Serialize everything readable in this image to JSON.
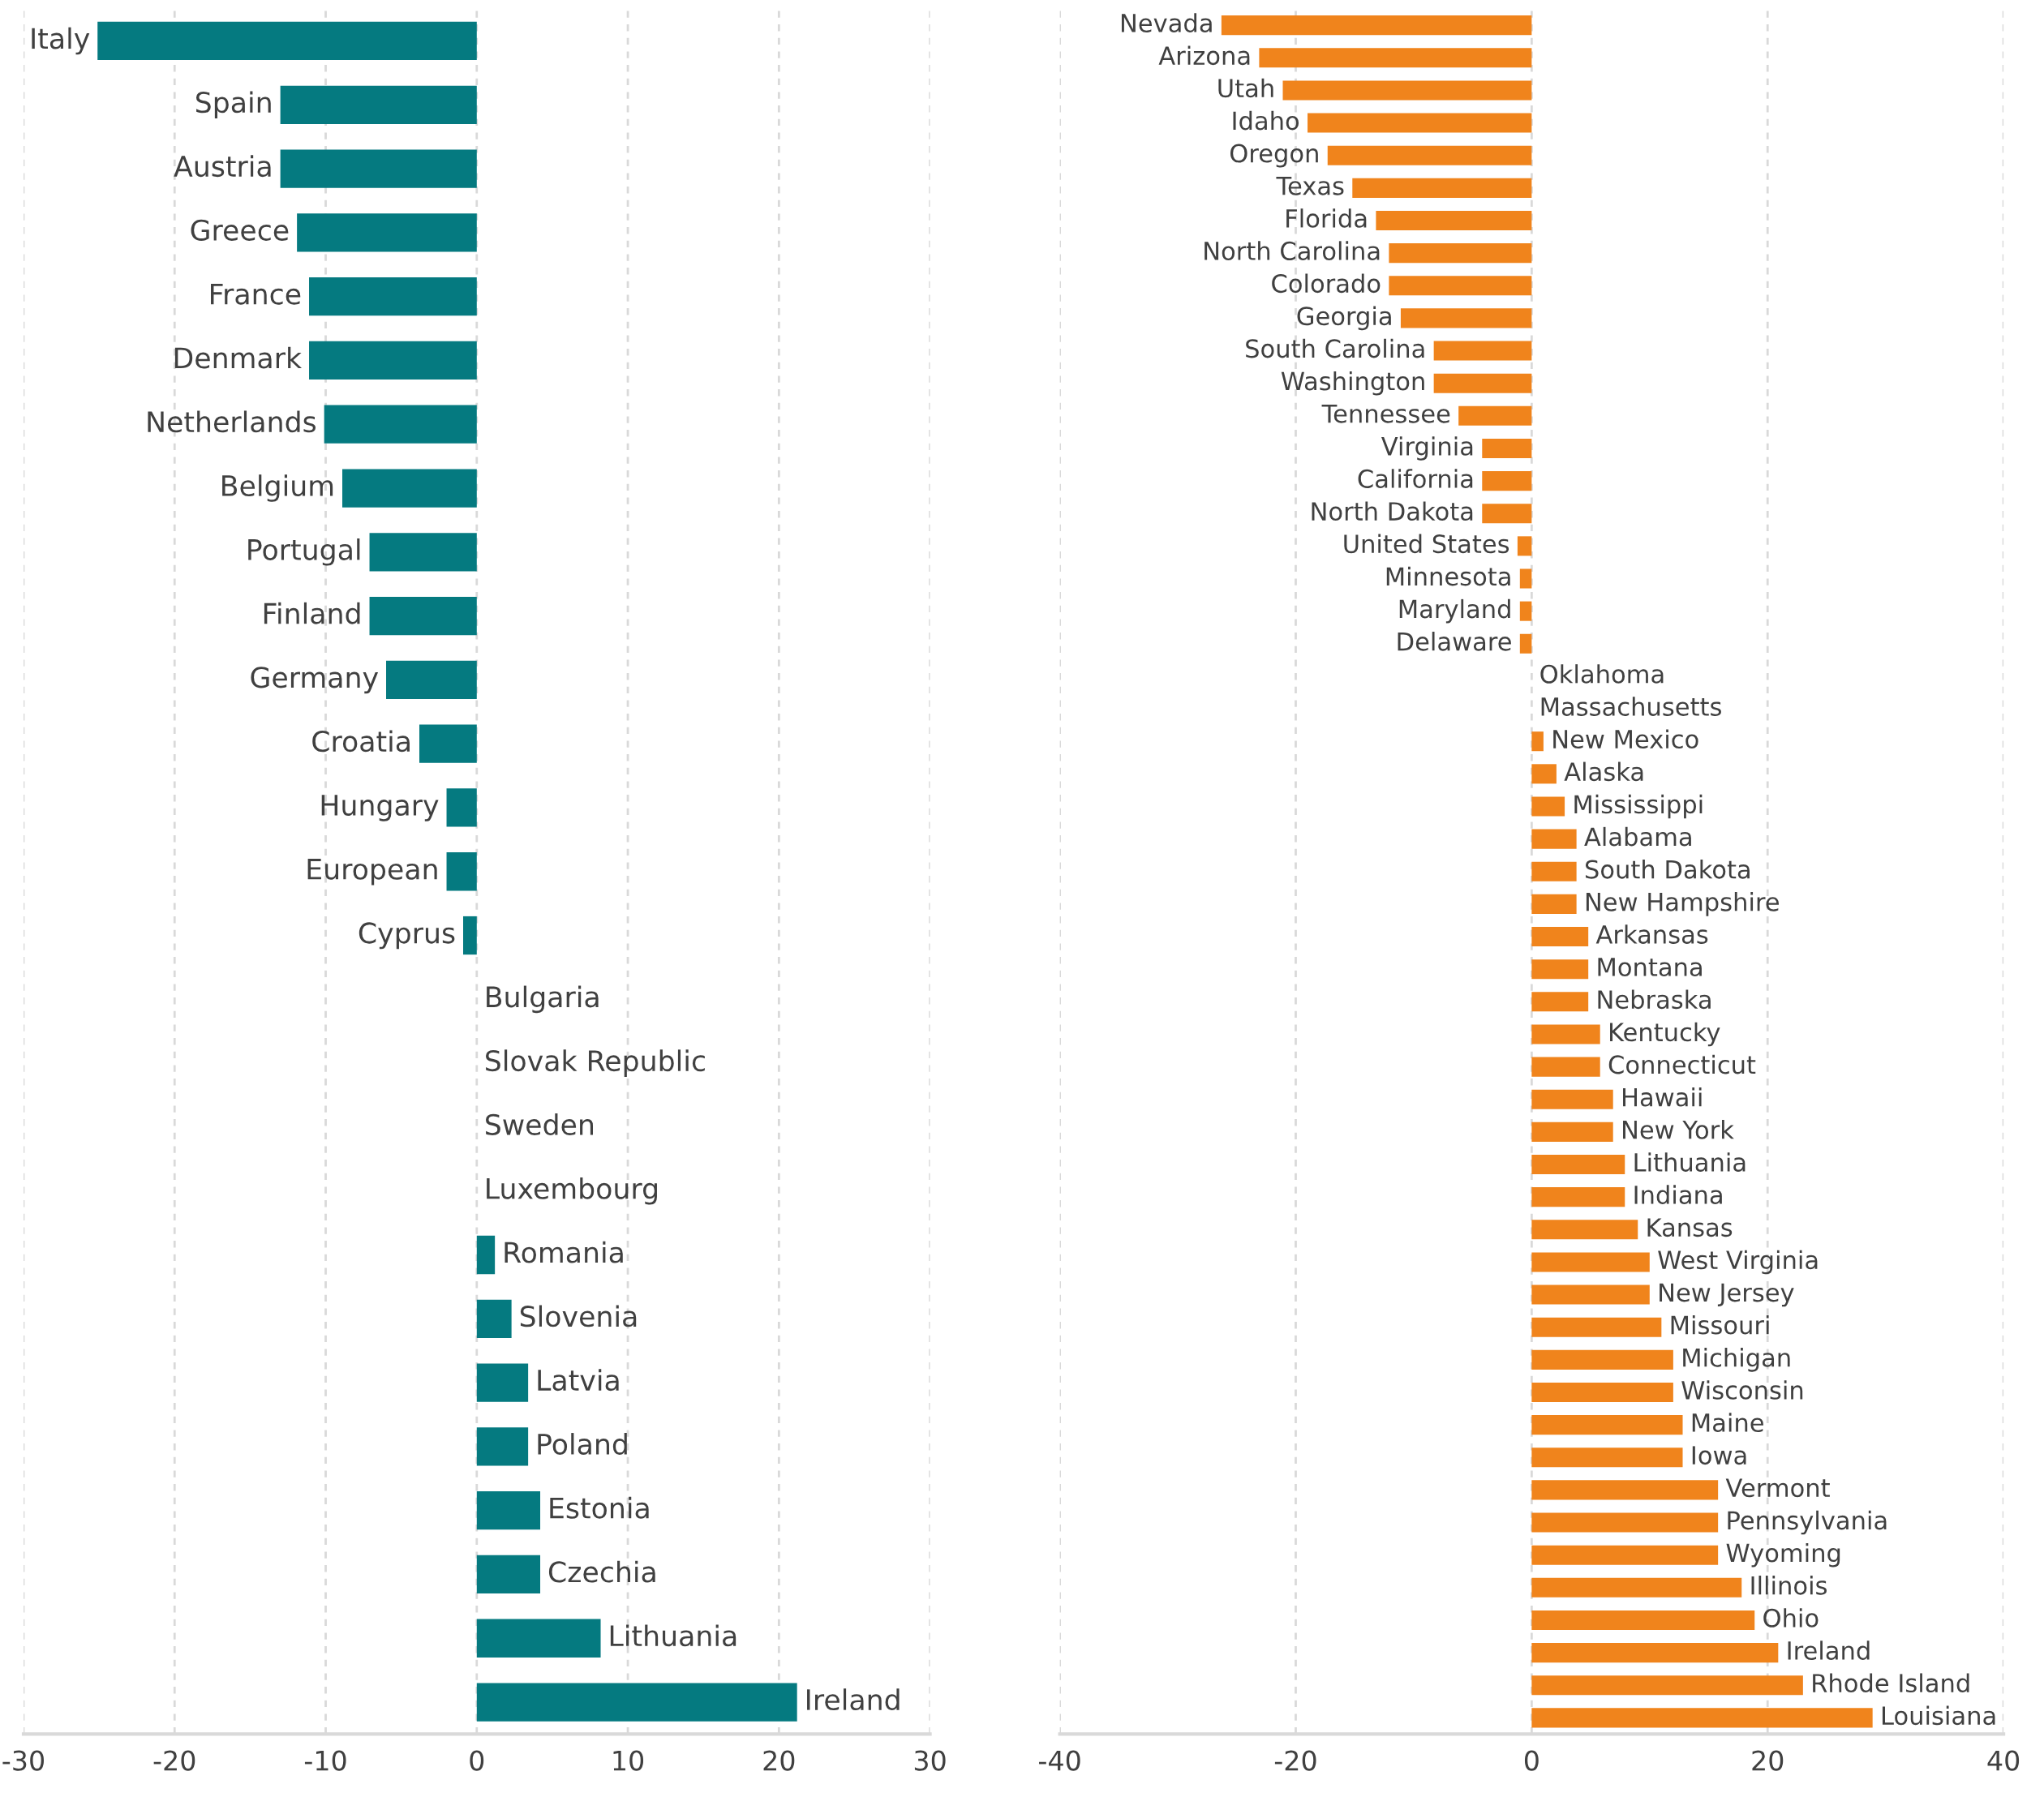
{
  "chart_data": [
    {
      "type": "bar",
      "orientation": "horizontal",
      "categories": [
        "Italy",
        "Spain",
        "Austria",
        "Greece",
        "France",
        "Denmark",
        "Netherlands",
        "Belgium",
        "Portugal",
        "Finland",
        "Germany",
        "Croatia",
        "Hungary",
        "European",
        "Cyprus",
        "Bulgaria",
        "Slovak Republic",
        "Sweden",
        "Luxembourg",
        "Romania",
        "Slovenia",
        "Latvia",
        "Poland",
        "Estonia",
        "Czechia",
        "Lithuania",
        "Ireland"
      ],
      "series": [
        {
          "color": "#057a80",
          "values": [
            -25.1,
            -13.0,
            -13.0,
            -11.9,
            -11.1,
            -11.1,
            -10.1,
            -8.9,
            -7.1,
            -7.1,
            -6.0,
            -3.8,
            -2.0,
            -2.0,
            -0.9,
            0,
            0,
            0,
            0,
            1.2,
            2.3,
            3.4,
            3.4,
            4.2,
            4.2,
            8.2,
            21.2
          ]
        }
      ],
      "xlim": [
        -30,
        30
      ],
      "xticks": [
        -30,
        -20,
        -10,
        0,
        10,
        20,
        30
      ],
      "grid": "x",
      "tick_labels": "x",
      "legend": false
    },
    {
      "type": "bar",
      "orientation": "horizontal",
      "categories": [
        "Nevada",
        "Arizona",
        "Utah",
        "Idaho",
        "Oregon",
        "Texas",
        "Florida",
        "North Carolina",
        "Colorado",
        "Georgia",
        "South Carolina",
        "Washington",
        "Tennessee",
        "Virginia",
        "California",
        "North Dakota",
        "United States",
        "Minnesota",
        "Maryland",
        "Delaware",
        "Oklahoma",
        "Massachusetts",
        "New Mexico",
        "Alaska",
        "Mississippi",
        "Alabama",
        "South Dakota",
        "New Hampshire",
        "Arkansas",
        "Montana",
        "Nebraska",
        "Kentucky",
        "Connecticut",
        "Hawaii",
        "New York",
        "Lithuania",
        "Indiana",
        "Kansas",
        "West Virginia",
        "New Jersey",
        "Missouri",
        "Michigan",
        "Wisconsin",
        "Maine",
        "Iowa",
        "Vermont",
        "Pennsylvania",
        "Wyoming",
        "Illinois",
        "Ohio",
        "Ireland",
        "Rhode Island",
        "Louisiana"
      ],
      "series": [
        {
          "color": "#f0841c",
          "values": [
            -26.3,
            -23.1,
            -21.1,
            -19.0,
            -17.3,
            -15.2,
            -13.2,
            -12.1,
            -12.1,
            -11.1,
            -8.3,
            -8.3,
            -6.2,
            -4.2,
            -4.2,
            -4.2,
            -1.2,
            -1.0,
            -1.0,
            -1.0,
            0,
            0,
            1.0,
            2.1,
            2.8,
            3.8,
            3.8,
            3.8,
            4.8,
            4.8,
            4.8,
            5.8,
            5.8,
            6.9,
            6.9,
            7.9,
            7.9,
            9.0,
            10.0,
            10.0,
            11.0,
            12.0,
            12.0,
            12.8,
            12.8,
            15.8,
            15.8,
            15.8,
            17.8,
            18.9,
            20.9,
            23.0,
            28.9
          ]
        }
      ],
      "xlim": [
        -40,
        40
      ],
      "xticks": [
        -40,
        -20,
        0,
        20,
        40
      ],
      "grid": "x",
      "tick_labels": "x",
      "legend": false
    }
  ]
}
